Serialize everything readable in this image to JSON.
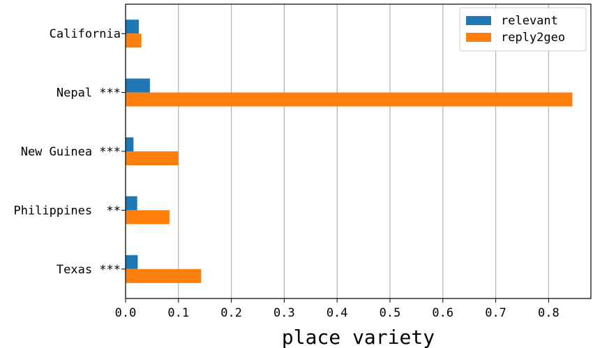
{
  "chart_data": {
    "type": "bar",
    "orientation": "horizontal",
    "categories": [
      "California",
      "Nepal ***",
      "New Guinea ***",
      "Philippines  **",
      "Texas ***"
    ],
    "series": [
      {
        "name": "relevant",
        "values": [
          0.025,
          0.046,
          0.015,
          0.022,
          0.023
        ],
        "color": "#1f77b4"
      },
      {
        "name": "reply2geo",
        "values": [
          0.03,
          0.845,
          0.1,
          0.083,
          0.143
        ],
        "color": "#ff7f0e"
      }
    ],
    "xlabel": "place variety",
    "ylabel": "",
    "xlim": [
      0,
      0.88
    ],
    "xticks": [
      "0.0",
      "0.1",
      "0.2",
      "0.3",
      "0.4",
      "0.5",
      "0.6",
      "0.7",
      "0.8"
    ],
    "grid": "vertical",
    "legend": "top-right"
  }
}
